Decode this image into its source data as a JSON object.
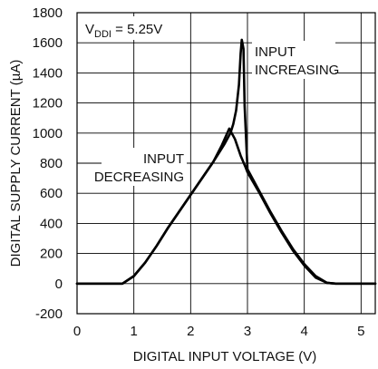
{
  "chart_data": {
    "type": "line",
    "title": "",
    "xlabel": "DIGITAL INPUT VOLTAGE (V)",
    "ylabel": "DIGITAL SUPPLY CURRENT (µA)",
    "xlim": [
      0,
      5.25
    ],
    "ylim": [
      -200,
      1800
    ],
    "xticks": [
      0,
      1,
      2,
      3,
      4,
      5
    ],
    "xtick_labels": [
      "0",
      "1",
      "2",
      "3",
      "4",
      "5"
    ],
    "yticks": [
      -200,
      0,
      200,
      400,
      600,
      800,
      1000,
      1200,
      1400,
      1600,
      1800
    ],
    "ytick_labels": [
      "-200",
      "0",
      "200",
      "400",
      "600",
      "800",
      "1000",
      "1200",
      "1400",
      "1600",
      "1800"
    ],
    "grid": true,
    "legend": "none",
    "condition": {
      "prefix": "V",
      "subscript": "DDI",
      "suffix": " = 5.25V"
    },
    "annotations": [
      {
        "lines": [
          "INPUT",
          "INCREASING"
        ]
      },
      {
        "lines": [
          "INPUT",
          "DECREASING"
        ]
      }
    ],
    "series": [
      {
        "x": [
          0,
          0.8,
          1.0,
          1.2,
          1.4,
          1.6,
          1.8,
          2.0,
          2.2,
          2.4,
          2.5,
          2.6,
          2.7,
          2.75,
          2.8,
          2.85,
          2.88,
          2.9,
          2.93,
          2.95,
          3.0,
          3.2,
          3.4,
          3.6,
          3.8,
          4.0,
          4.2,
          4.4,
          4.55,
          5.25
        ],
        "y": [
          0,
          0,
          50,
          140,
          250,
          370,
          480,
          590,
          700,
          810,
          870,
          930,
          1000,
          1060,
          1150,
          1320,
          1530,
          1620,
          1560,
          1180,
          760,
          620,
          480,
          350,
          230,
          130,
          50,
          5,
          0,
          0
        ]
      },
      {
        "x": [
          0,
          0.8,
          1.0,
          1.2,
          1.4,
          1.6,
          1.8,
          2.0,
          2.2,
          2.4,
          2.55,
          2.68,
          2.78,
          2.88,
          2.97,
          3.0,
          3.2,
          3.4,
          3.6,
          3.8,
          4.0,
          4.2,
          4.4,
          4.55,
          5.25
        ],
        "y": [
          0,
          0,
          50,
          140,
          250,
          370,
          480,
          590,
          700,
          810,
          920,
          1030,
          960,
          850,
          770,
          740,
          610,
          470,
          340,
          220,
          120,
          40,
          5,
          0,
          0
        ]
      }
    ],
    "line_color": "#000000"
  }
}
